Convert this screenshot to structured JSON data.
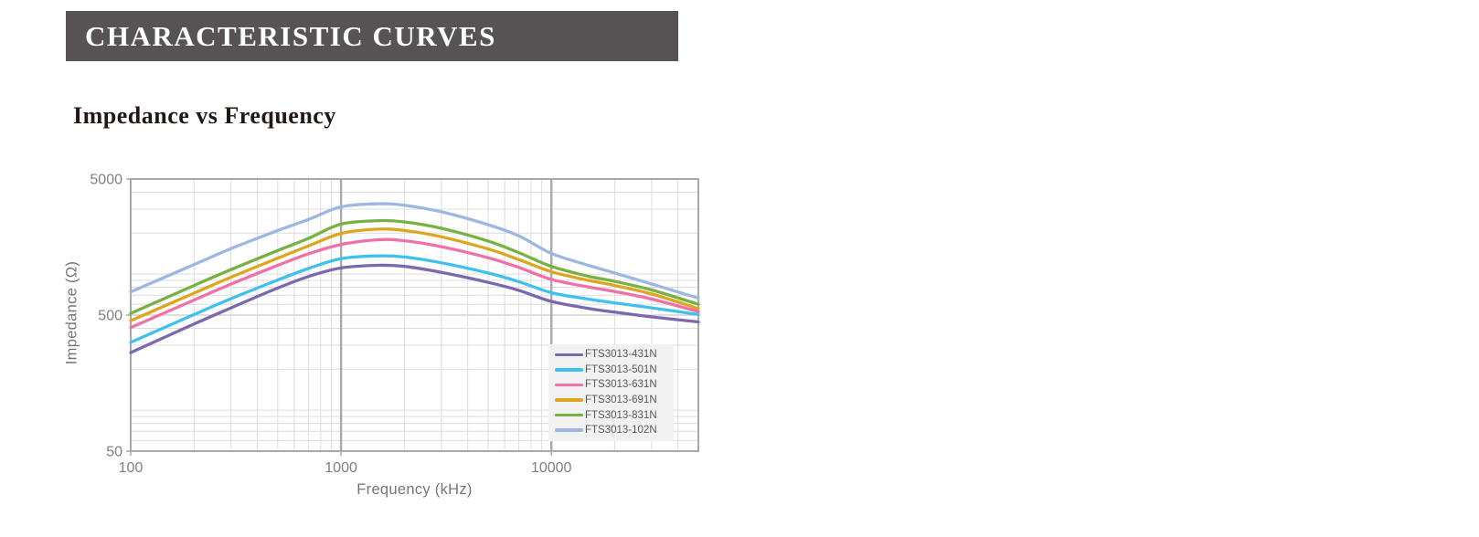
{
  "header": {
    "title": "CHARACTERISTIC CURVES",
    "bg_color": "#575354",
    "text_color": "#ffffff"
  },
  "section": {
    "title": "Impedance vs Frequency"
  },
  "chart_data": {
    "type": "line",
    "title": "Impedance vs Frequency",
    "xlabel": "Frequency (kHz)",
    "ylabel": "Impedance (Ω)",
    "x_scale": "log",
    "y_scale": "log",
    "xlim": [
      100,
      50000
    ],
    "ylim": [
      50,
      5000
    ],
    "x_ticks": [
      100,
      1000,
      10000
    ],
    "x_tick_labels": [
      "100",
      "1000",
      "10000"
    ],
    "y_ticks": [
      5000,
      500,
      50
    ],
    "y_tick_labels": [
      "5000",
      "500",
      "50"
    ],
    "grid": "log minor gridlines on, darker major verticals at decades",
    "legend_position": "inside lower right",
    "x": [
      100,
      200,
      300,
      500,
      700,
      1000,
      1500,
      2000,
      3000,
      5000,
      7000,
      10000,
      15000,
      20000,
      30000,
      50000
    ],
    "series": [
      {
        "name": "FTS3013-431N",
        "color": "#7b68ae",
        "values": [
          265,
          430,
          565,
          790,
          960,
          1110,
          1160,
          1140,
          1030,
          870,
          760,
          630,
          560,
          525,
          485,
          445
        ]
      },
      {
        "name": "FTS3013-501N",
        "color": "#3fc0ef",
        "values": [
          315,
          505,
          660,
          905,
          1100,
          1300,
          1360,
          1335,
          1210,
          1020,
          880,
          730,
          655,
          615,
          565,
          505
        ]
      },
      {
        "name": "FTS3013-631N",
        "color": "#f070a8",
        "values": [
          405,
          645,
          845,
          1160,
          1410,
          1650,
          1790,
          1760,
          1590,
          1320,
          1120,
          915,
          805,
          745,
          655,
          530
        ]
      },
      {
        "name": "FTS3013-691N",
        "color": "#dca71e",
        "values": [
          455,
          725,
          950,
          1310,
          1610,
          1990,
          2140,
          2090,
          1880,
          1530,
          1280,
          1040,
          900,
          825,
          715,
          557
        ]
      },
      {
        "name": "FTS3013-831N",
        "color": "#77b144",
        "values": [
          515,
          825,
          1080,
          1490,
          1830,
          2330,
          2470,
          2420,
          2170,
          1750,
          1440,
          1140,
          965,
          885,
          765,
          600
        ]
      },
      {
        "name": "FTS3013-102N",
        "color": "#9db7e0",
        "values": [
          740,
          1175,
          1540,
          2090,
          2520,
          3120,
          3290,
          3210,
          2870,
          2310,
          1910,
          1420,
          1160,
          1020,
          845,
          665
        ]
      }
    ],
    "style_colors": {
      "minor_grid": "#dcdcdc",
      "major_grid_vertical": "#a9a9a9",
      "major_grid_horizontal": "#c9c9c9",
      "frame": "#a9a9a9",
      "legend_bg": "#f1f1f1",
      "tick_text": "#7f7f7f"
    }
  }
}
